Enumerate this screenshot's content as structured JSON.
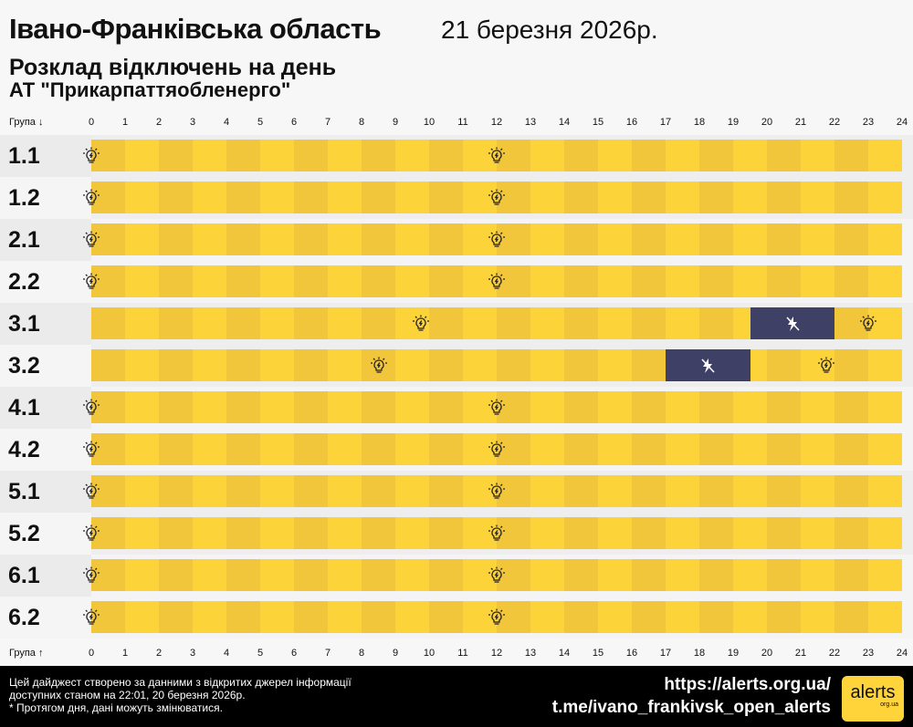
{
  "header": {
    "region": "Івано-Франківська область",
    "date": "21 березня 2026р.",
    "subtitle": "Розклад відключень на день",
    "company": "АТ \"Прикарпаттяобленерго\""
  },
  "axis": {
    "top_label": "Група ↓",
    "bottom_label": "Група ↑",
    "hours": [
      "0",
      "1",
      "2",
      "3",
      "4",
      "5",
      "6",
      "7",
      "8",
      "9",
      "10",
      "11",
      "12",
      "13",
      "14",
      "15",
      "16",
      "17",
      "18",
      "19",
      "20",
      "21",
      "22",
      "23",
      "24"
    ]
  },
  "colors": {
    "on": "#fdd33a",
    "on_dark": "#f2c63a",
    "off": "#3e4066",
    "row_bg_a": "#ebebeb",
    "row_bg_b": "#f5f5f5"
  },
  "groups": [
    {
      "name": "1.1",
      "outages": [],
      "bulbs": [
        0,
        12
      ]
    },
    {
      "name": "1.2",
      "outages": [],
      "bulbs": [
        0,
        12
      ]
    },
    {
      "name": "2.1",
      "outages": [],
      "bulbs": [
        0,
        12
      ]
    },
    {
      "name": "2.2",
      "outages": [],
      "bulbs": [
        0,
        12
      ]
    },
    {
      "name": "3.1",
      "outages": [
        [
          19.5,
          22
        ]
      ],
      "bulbs": [
        9.75,
        23
      ],
      "offs": [
        20.75
      ]
    },
    {
      "name": "3.2",
      "outages": [
        [
          17,
          19.5
        ]
      ],
      "bulbs": [
        8.5,
        21.75
      ],
      "offs": [
        18.25
      ]
    },
    {
      "name": "4.1",
      "outages": [],
      "bulbs": [
        0,
        12
      ]
    },
    {
      "name": "4.2",
      "outages": [],
      "bulbs": [
        0,
        12
      ]
    },
    {
      "name": "5.1",
      "outages": [],
      "bulbs": [
        0,
        12
      ]
    },
    {
      "name": "5.2",
      "outages": [],
      "bulbs": [
        0,
        12
      ]
    },
    {
      "name": "6.1",
      "outages": [],
      "bulbs": [
        0,
        12
      ]
    },
    {
      "name": "6.2",
      "outages": [],
      "bulbs": [
        0,
        12
      ]
    }
  ],
  "icons": {
    "power_on": "lightbulb-icon",
    "power_off": "no-power-icon"
  },
  "footer": {
    "note1": "Цей дайджест створено за данними з відкритих джерел інформації",
    "note2": "доступних станом на 22:01, 20 березня 2026р.",
    "note3": "* Протягом дня, дані можуть змінюватися.",
    "site": "https://alerts.org.ua/",
    "telegram": "t.me/ivano_frankivsk_open_alerts",
    "logo_text": "alerts",
    "logo_sub": "org.ua"
  }
}
